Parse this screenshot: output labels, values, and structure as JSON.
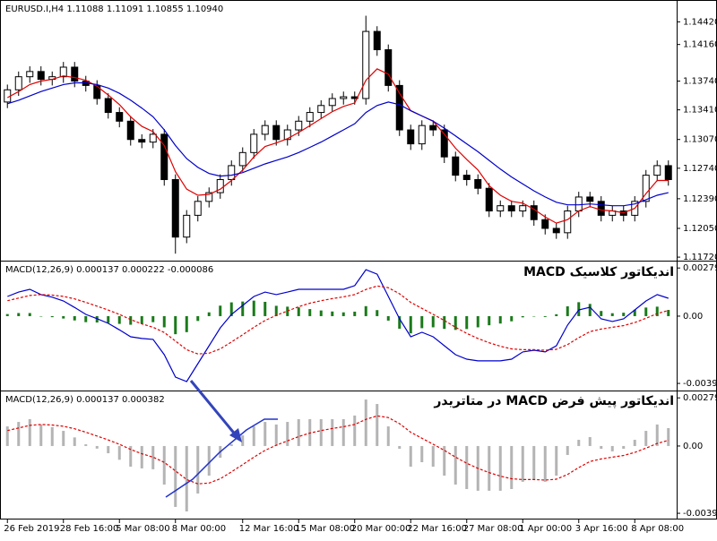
{
  "chart_data": [
    {
      "type": "candlestick",
      "title": "EURUSD.I,H4  1.11088 1.11091 1.10855 1.10940",
      "categories": [
        "26 Feb 2019",
        null,
        null,
        null,
        null,
        "28 Feb 16:00",
        null,
        null,
        null,
        null,
        "5 Mar 08:00",
        null,
        null,
        null,
        null,
        "8 Mar 00:00",
        null,
        null,
        null,
        null,
        null,
        "12 Mar 16:00",
        null,
        null,
        null,
        null,
        "15 Mar 08:00",
        null,
        null,
        null,
        null,
        "20 Mar 00:00",
        null,
        null,
        null,
        null,
        "22 Mar 16:00",
        null,
        null,
        null,
        null,
        "27 Mar 08:00",
        null,
        null,
        null,
        null,
        "1 Apr 00:00",
        null,
        null,
        null,
        null,
        "3 Apr 16:00",
        null,
        null,
        null,
        null,
        "8 Apr 08:00",
        null,
        null,
        null
      ],
      "open": [
        1.135,
        1.1364,
        1.1379,
        1.1385,
        1.1376,
        1.1379,
        1.139,
        1.1374,
        1.1369,
        1.1354,
        1.1338,
        1.1328,
        1.1307,
        1.1304,
        1.1313,
        1.1261,
        1.1195,
        1.122,
        1.1236,
        1.1246,
        1.1261,
        1.1277,
        1.1292,
        1.1313,
        1.1323,
        1.1307,
        1.1318,
        1.1328,
        1.1338,
        1.1346,
        1.1354,
        1.1356,
        1.1354,
        1.1431,
        1.141,
        1.1369,
        1.1318,
        1.1302,
        1.1323,
        1.1318,
        1.1287,
        1.1266,
        1.1261,
        1.1251,
        1.1225,
        1.1231,
        1.1225,
        1.1231,
        1.1215,
        1.1205,
        1.12,
        1.1225,
        1.1241,
        1.1236,
        1.122,
        1.1225,
        1.122,
        1.1236,
        1.1266,
        1.1277
      ],
      "high": [
        1.137,
        1.1385,
        1.1391,
        1.1391,
        1.1385,
        1.1396,
        1.1396,
        1.138,
        1.1375,
        1.136,
        1.1344,
        1.1334,
        1.1313,
        1.1319,
        1.1319,
        1.1267,
        1.1226,
        1.1242,
        1.1252,
        1.1267,
        1.1283,
        1.1298,
        1.1319,
        1.1329,
        1.1329,
        1.1324,
        1.1334,
        1.1344,
        1.1352,
        1.136,
        1.1362,
        1.1362,
        1.1449,
        1.1437,
        1.1416,
        1.1375,
        1.1324,
        1.1329,
        1.1329,
        1.1324,
        1.1293,
        1.1272,
        1.1267,
        1.1257,
        1.1237,
        1.1237,
        1.1237,
        1.1237,
        1.1221,
        1.1211,
        1.1231,
        1.1247,
        1.1247,
        1.1242,
        1.1231,
        1.1231,
        1.1242,
        1.1272,
        1.1283,
        1.1283
      ],
      "low": [
        1.1343,
        1.1357,
        1.1372,
        1.1369,
        1.1369,
        1.1372,
        1.1367,
        1.1362,
        1.1347,
        1.1331,
        1.1321,
        1.13,
        1.1297,
        1.1297,
        1.1254,
        1.1176,
        1.1188,
        1.1213,
        1.1229,
        1.1239,
        1.1254,
        1.127,
        1.1285,
        1.1306,
        1.13,
        1.13,
        1.1311,
        1.1321,
        1.1331,
        1.1339,
        1.1347,
        1.1347,
        1.1347,
        1.1403,
        1.1362,
        1.1311,
        1.1295,
        1.1295,
        1.1311,
        1.128,
        1.1259,
        1.1254,
        1.1244,
        1.1218,
        1.1218,
        1.1218,
        1.1218,
        1.1208,
        1.1198,
        1.1193,
        1.1193,
        1.1218,
        1.1229,
        1.1213,
        1.1213,
        1.1213,
        1.1213,
        1.1229,
        1.1259,
        1.1254
      ],
      "close": [
        1.1364,
        1.1379,
        1.1385,
        1.1376,
        1.1379,
        1.139,
        1.1374,
        1.1369,
        1.1354,
        1.1338,
        1.1328,
        1.1307,
        1.1304,
        1.1313,
        1.1261,
        1.1195,
        1.122,
        1.1236,
        1.1246,
        1.1261,
        1.1277,
        1.1292,
        1.1313,
        1.1323,
        1.1307,
        1.1318,
        1.1328,
        1.1338,
        1.1346,
        1.1354,
        1.1356,
        1.1354,
        1.1431,
        1.141,
        1.1369,
        1.1318,
        1.1302,
        1.1323,
        1.1318,
        1.1287,
        1.1266,
        1.1261,
        1.1251,
        1.1225,
        1.1231,
        1.1225,
        1.1231,
        1.1215,
        1.1205,
        1.12,
        1.1225,
        1.1241,
        1.1236,
        1.122,
        1.1225,
        1.122,
        1.1236,
        1.1266,
        1.1277,
        1.1261
      ],
      "up_color": "#ffffff",
      "down_color": "#000000",
      "outline_color": "#000000",
      "overlays": [
        {
          "color": "#e00000",
          "values": [
            1.1355,
            1.1362,
            1.137,
            1.1374,
            1.1376,
            1.138,
            1.1378,
            1.1375,
            1.1368,
            1.1358,
            1.1347,
            1.1333,
            1.1322,
            1.1316,
            1.13,
            1.127,
            1.125,
            1.1243,
            1.1244,
            1.125,
            1.126,
            1.1272,
            1.1287,
            1.1299,
            1.1303,
            1.1308,
            1.1315,
            1.1323,
            1.1331,
            1.1339,
            1.1345,
            1.1349,
            1.1375,
            1.1388,
            1.1382,
            1.136,
            1.134,
            1.1334,
            1.1328,
            1.1313,
            1.1297,
            1.1284,
            1.1272,
            1.1254,
            1.1243,
            1.1236,
            1.1234,
            1.1227,
            1.1218,
            1.1211,
            1.1215,
            1.1225,
            1.123,
            1.1226,
            1.1225,
            1.1223,
            1.1228,
            1.1245,
            1.126,
            1.126
          ]
        },
        {
          "color": "#0000cc",
          "values": [
            1.1348,
            1.1352,
            1.1357,
            1.1362,
            1.1366,
            1.137,
            1.1372,
            1.1372,
            1.137,
            1.1366,
            1.136,
            1.1352,
            1.1343,
            1.1333,
            1.1318,
            1.13,
            1.1285,
            1.1275,
            1.1268,
            1.1265,
            1.1266,
            1.1269,
            1.1274,
            1.1279,
            1.1283,
            1.1287,
            1.1292,
            1.1298,
            1.1304,
            1.1311,
            1.1318,
            1.1325,
            1.1338,
            1.1346,
            1.135,
            1.1347,
            1.134,
            1.1334,
            1.1328,
            1.132,
            1.1311,
            1.1302,
            1.1293,
            1.1283,
            1.1273,
            1.1264,
            1.1256,
            1.1248,
            1.1241,
            1.1235,
            1.1232,
            1.1232,
            1.1233,
            1.1232,
            1.1231,
            1.1231,
            1.1233,
            1.1238,
            1.1243,
            1.1246
          ]
        }
      ],
      "ylim": [
        1.1169,
        1.1465
      ],
      "yticks": [
        {
          "value": 1.1442,
          "label": "1.14420"
        },
        {
          "value": 1.1416,
          "label": "1.14160"
        },
        {
          "value": 1.1374,
          "label": "1.13740"
        },
        {
          "value": 1.1341,
          "label": "1.13410"
        },
        {
          "value": 1.1307,
          "label": "1.13070"
        },
        {
          "value": 1.1274,
          "label": "1.12740"
        },
        {
          "value": 1.1239,
          "label": "1.12390"
        },
        {
          "value": 1.1205,
          "label": "1.12050"
        },
        {
          "value": 1.1172,
          "label": "1.11720"
        }
      ]
    },
    {
      "type": "macd",
      "title": "MACD(12,26,9) 0.000137 0.000222 -0.000086",
      "subtitle": "اندیکاتور کلاسیک MACD",
      "line": {
        "color": "#0000cc",
        "values": [
          0.00114,
          0.0014,
          0.00156,
          0.00125,
          0.0011,
          0.00088,
          0.0005,
          0.0001,
          -0.00015,
          -0.00042,
          -0.0008,
          -0.0012,
          -0.0013,
          -0.00135,
          -0.00224,
          -0.00354,
          -0.0038,
          -0.00276,
          -0.00172,
          -0.00068,
          0.0001,
          0.00062,
          0.00114,
          0.0014,
          0.00125,
          0.0014,
          0.00156,
          0.00156,
          0.00156,
          0.00156,
          0.00156,
          0.00177,
          0.0027,
          0.00244,
          0.00114,
          -0.00016,
          -0.0012,
          -0.00094,
          -0.0012,
          -0.00172,
          -0.00224,
          -0.0025,
          -0.0026,
          -0.0026,
          -0.0026,
          -0.0025,
          -0.00208,
          -0.00198,
          -0.00208,
          -0.00172,
          -0.00052,
          0.00036,
          0.00052,
          -0.00016,
          -0.00031,
          -0.00016,
          0.00036,
          0.00088,
          0.00125,
          0.00104
        ]
      },
      "signal": {
        "color": "#e00000",
        "values": [
          0.0009,
          0.00105,
          0.0012,
          0.00125,
          0.00122,
          0.00115,
          0.001,
          0.0008,
          0.00058,
          0.00035,
          0.0001,
          -0.0002,
          -0.00045,
          -0.00065,
          -0.00095,
          -0.00145,
          -0.00195,
          -0.0022,
          -0.00215,
          -0.0019,
          -0.0015,
          -0.00108,
          -0.00065,
          -0.00025,
          5e-05,
          0.0003,
          0.00055,
          0.00075,
          0.0009,
          0.00102,
          0.00112,
          0.00125,
          0.00155,
          0.00175,
          0.00165,
          0.0013,
          0.0008,
          0.00045,
          0.0001,
          -0.00025,
          -0.00065,
          -0.001,
          -0.0013,
          -0.00155,
          -0.00175,
          -0.0019,
          -0.00195,
          -0.00195,
          -0.00198,
          -0.00193,
          -0.00165,
          -0.00125,
          -0.0009,
          -0.00075,
          -0.00065,
          -0.00055,
          -0.00037,
          -0.00012,
          0.00015,
          0.00033
        ]
      },
      "histogram": {
        "color": "#1a7a1a",
        "values": [
          0.00012,
          0.00018,
          0.00018,
          0,
          -6e-05,
          -0.00014,
          -0.00025,
          -0.00035,
          -0.00037,
          -0.00039,
          -0.00045,
          -0.0005,
          -0.00043,
          -0.00035,
          -0.00065,
          -0.00105,
          -0.00093,
          -0.00028,
          0.00022,
          0.00061,
          0.0008,
          0.00085,
          0.0009,
          0.00083,
          0.0006,
          0.00055,
          0.00051,
          0.00041,
          0.00033,
          0.00027,
          0.00022,
          0.00026,
          0.00058,
          0.00035,
          -0.00026,
          -0.00073,
          -0.001,
          -0.0007,
          -0.00065,
          -0.00074,
          -0.0008,
          -0.00075,
          -0.00065,
          -0.00053,
          -0.00043,
          -0.0003,
          -7e-05,
          -2e-05,
          -5e-05,
          0.00011,
          0.00057,
          0.00081,
          0.00071,
          0.0003,
          0.00017,
          0.0002,
          0.00037,
          0.0005,
          0.00055,
          0.00036
        ]
      },
      "ylim": [
        -0.00427,
        0.00312
      ],
      "yticks": [
        0.002797,
        {
          "value": 0,
          "label": "0.00"
        },
        -0.003909
      ]
    },
    {
      "type": "macd",
      "title": "MACD(12,26,9) 0.000137 0.000382",
      "subtitle": "اندیکاتور پیش فرض MACD در متاتریدر",
      "histogram": {
        "color": "#b4b4b4",
        "values": [
          0.00114,
          0.0014,
          0.00156,
          0.00125,
          0.0011,
          0.00088,
          0.0005,
          0.0001,
          -0.00015,
          -0.00042,
          -0.0008,
          -0.0012,
          -0.0013,
          -0.00135,
          -0.00224,
          -0.00354,
          -0.0038,
          -0.00276,
          -0.00172,
          -0.00068,
          0.0001,
          0.00062,
          0.00114,
          0.0014,
          0.00125,
          0.0014,
          0.00156,
          0.00156,
          0.00156,
          0.00156,
          0.00156,
          0.00177,
          0.0027,
          0.00244,
          0.00114,
          -0.00016,
          -0.0012,
          -0.00094,
          -0.0012,
          -0.00172,
          -0.00224,
          -0.0025,
          -0.0026,
          -0.0026,
          -0.0026,
          -0.0025,
          -0.00208,
          -0.00198,
          -0.00208,
          -0.00172,
          -0.00052,
          0.00036,
          0.00052,
          -0.00016,
          -0.00031,
          -0.00016,
          0.00036,
          0.00088,
          0.00125,
          0.00104
        ]
      },
      "signal": {
        "color": "#e00000",
        "values": [
          0.0009,
          0.00105,
          0.0012,
          0.00125,
          0.00122,
          0.00115,
          0.001,
          0.0008,
          0.00058,
          0.00035,
          0.0001,
          -0.0002,
          -0.00045,
          -0.00065,
          -0.00095,
          -0.00145,
          -0.00195,
          -0.0022,
          -0.00215,
          -0.0019,
          -0.0015,
          -0.00108,
          -0.00065,
          -0.00025,
          5e-05,
          0.0003,
          0.00055,
          0.00075,
          0.0009,
          0.00102,
          0.00112,
          0.00125,
          0.00155,
          0.00175,
          0.00165,
          0.0013,
          0.0008,
          0.00045,
          0.0001,
          -0.00025,
          -0.00065,
          -0.001,
          -0.0013,
          -0.00155,
          -0.00175,
          -0.0019,
          -0.00195,
          -0.00195,
          -0.00198,
          -0.00193,
          -0.00165,
          -0.00125,
          -0.0009,
          -0.00075,
          -0.00065,
          -0.00055,
          -0.00037,
          -0.00012,
          0.00015,
          0.00033
        ]
      },
      "ylim": [
        -0.00427,
        0.00312
      ],
      "yticks": [
        0.002797,
        {
          "value": 0,
          "label": "0.00"
        },
        -0.003909
      ]
    }
  ]
}
